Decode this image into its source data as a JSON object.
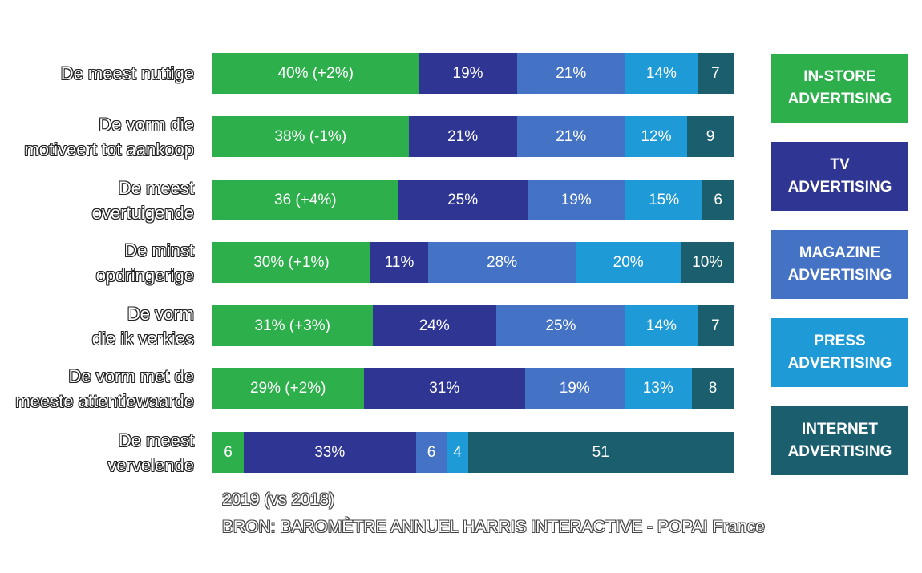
{
  "chart_data": {
    "type": "bar",
    "orientation": "horizontal",
    "stacked": true,
    "normalized": true,
    "categories": [
      "De meest nuttige",
      "De vorm die motiveert tot aankoop",
      "De meest overtuigende",
      "De minst opdringerige",
      "De vorm die ik verkies",
      "De vorm met de meeste attentiewaarde",
      "De meest vervelende"
    ],
    "category_lines": [
      [
        "De meest nuttige"
      ],
      [
        "De vorm die",
        "motiveert tot aankoop"
      ],
      [
        "De meest",
        "overtuigende"
      ],
      [
        "De minst",
        "opdringerige"
      ],
      [
        "De vorm",
        "die ik verkies"
      ],
      [
        "De vorm met de",
        "meeste attentiewaarde"
      ],
      [
        "De meest",
        "vervelende"
      ]
    ],
    "series": [
      {
        "name": "IN-STORE ADVERTISING",
        "name_lines": [
          "IN-STORE",
          "ADVERTISING"
        ],
        "color": "#2db04b",
        "values": [
          40,
          38,
          36,
          30,
          31,
          29,
          6
        ],
        "labels": [
          "40% (+2%)",
          "38% (-1%)",
          "36 (+4%)",
          "30% (+1%)",
          "31% (+3%)",
          "29% (+2%)",
          "6"
        ]
      },
      {
        "name": "TV ADVERTISING",
        "name_lines": [
          "TV",
          "ADVERTISING"
        ],
        "color": "#2e3592",
        "values": [
          19,
          21,
          25,
          11,
          24,
          31,
          33
        ],
        "labels": [
          "19%",
          "21%",
          "25%",
          "11%",
          "24%",
          "31%",
          "33%"
        ]
      },
      {
        "name": "MAGAZINE ADVERTISING",
        "name_lines": [
          "MAGAZINE",
          "ADVERTISING"
        ],
        "color": "#4472c4",
        "values": [
          21,
          21,
          19,
          28,
          25,
          19,
          6
        ],
        "labels": [
          "21%",
          "21%",
          "19%",
          "28%",
          "25%",
          "19%",
          "6"
        ]
      },
      {
        "name": "PRESS ADVERTISING",
        "name_lines": [
          "PRESS",
          "ADVERTISING"
        ],
        "color": "#1e9ad6",
        "values": [
          14,
          12,
          15,
          20,
          14,
          13,
          4
        ],
        "labels": [
          "14%",
          "12%",
          "15%",
          "20%",
          "14%",
          "13%",
          "4"
        ]
      },
      {
        "name": "INTERNET ADVERTISING",
        "name_lines": [
          "INTERNET",
          "ADVERTISING"
        ],
        "color": "#1b5e6e",
        "values": [
          7,
          9,
          6,
          10,
          7,
          8,
          51
        ],
        "labels": [
          "7",
          "9",
          "6",
          "10%",
          "7",
          "8",
          "51"
        ]
      }
    ],
    "legend_position": "right",
    "grid": false
  },
  "footer": {
    "year_note": "2019 (vs 2018)",
    "source": "BRON: BAROMÈTRE ANNUEL HARRIS INTERACTIVE - POPAI France"
  }
}
